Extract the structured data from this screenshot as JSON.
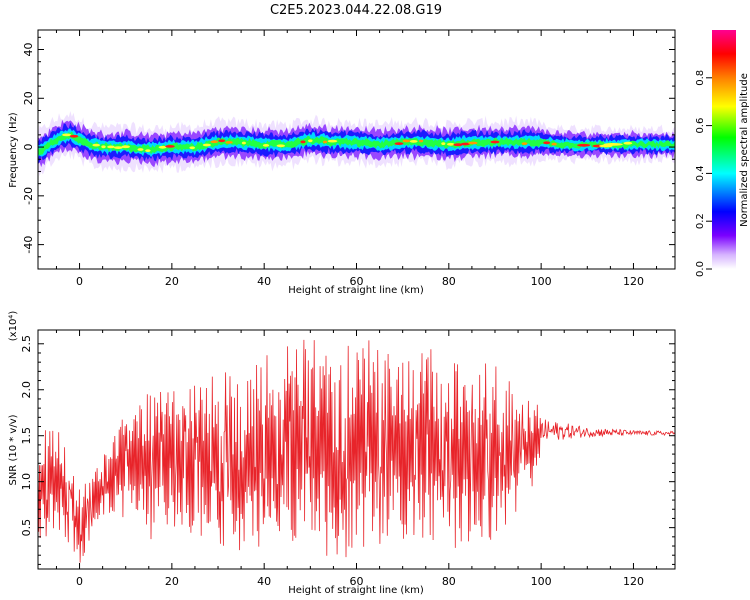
{
  "title": "C2E5.2023.044.22.08.G19",
  "chart_data": [
    {
      "type": "heatmap",
      "xlabel": "Height of straight line (km)",
      "ylabel": "Frequency (Hz)",
      "xlim": [
        -9,
        129
      ],
      "ylim": [
        -50,
        48
      ],
      "xticks": [
        0,
        20,
        40,
        60,
        80,
        100,
        120
      ],
      "yticks": [
        -40,
        -20,
        0,
        20,
        40
      ],
      "colorbar": {
        "label": "Normalized spectral amplitude",
        "range": [
          0,
          1
        ],
        "ticks": [
          "0.0",
          "0.2",
          "0.4",
          "0.6",
          "0.8"
        ],
        "colormap": [
          "#ffffff",
          "#7a00ff",
          "#0000ff",
          "#00ffff",
          "#00ff00",
          "#ffff00",
          "#ff8000",
          "#ff0000",
          "#ff00ff"
        ]
      },
      "ridge": {
        "x": [
          -9,
          -8,
          -6,
          -4,
          -2,
          0,
          2,
          5,
          10,
          15,
          20,
          25,
          30,
          35,
          40,
          45,
          50,
          55,
          60,
          65,
          70,
          75,
          80,
          85,
          90,
          95,
          100,
          105,
          110,
          115,
          120,
          125,
          129
        ],
        "y": [
          -2,
          -1,
          2,
          4,
          5,
          3,
          1,
          0,
          0,
          -1,
          0,
          0,
          2,
          2,
          1,
          1,
          3,
          2,
          2,
          1,
          2,
          2,
          1,
          2,
          2,
          2,
          2,
          1,
          1,
          1,
          1,
          1,
          1
        ]
      }
    },
    {
      "type": "line",
      "xlabel": "Height of straight line (km)",
      "ylabel": "SNR (10 * v/v)",
      "y_multiplier": "(x10⁴)",
      "xlim": [
        -9,
        129
      ],
      "ylim": [
        0.05,
        2.65
      ],
      "xticks": [
        0,
        20,
        40,
        60,
        80,
        100,
        120
      ],
      "yticks": [
        "0.5",
        "1.0",
        "1.5",
        "2.0",
        "2.5"
      ],
      "color": "#e8242a",
      "envelope": {
        "x": [
          -9,
          -5,
          0,
          5,
          10,
          15,
          20,
          25,
          30,
          35,
          40,
          45,
          50,
          55,
          60,
          65,
          70,
          75,
          80,
          85,
          90,
          95,
          99,
          100,
          105,
          110,
          120,
          129
        ],
        "low": [
          0.3,
          0.5,
          0.1,
          0.6,
          0.55,
          0.35,
          0.45,
          0.4,
          0.3,
          0.2,
          0.2,
          0.35,
          0.25,
          0.15,
          0.2,
          0.3,
          0.3,
          0.35,
          0.25,
          0.35,
          0.35,
          0.55,
          1.0,
          1.4,
          1.45,
          1.48,
          1.5,
          1.5
        ],
        "high": [
          1.5,
          1.65,
          1.0,
          1.3,
          1.8,
          2.0,
          2.0,
          2.05,
          2.3,
          2.1,
          2.4,
          2.5,
          2.6,
          2.5,
          2.6,
          2.5,
          2.35,
          2.5,
          2.3,
          2.3,
          2.3,
          2.0,
          1.9,
          1.7,
          1.65,
          1.6,
          1.56,
          1.55
        ]
      }
    }
  ]
}
